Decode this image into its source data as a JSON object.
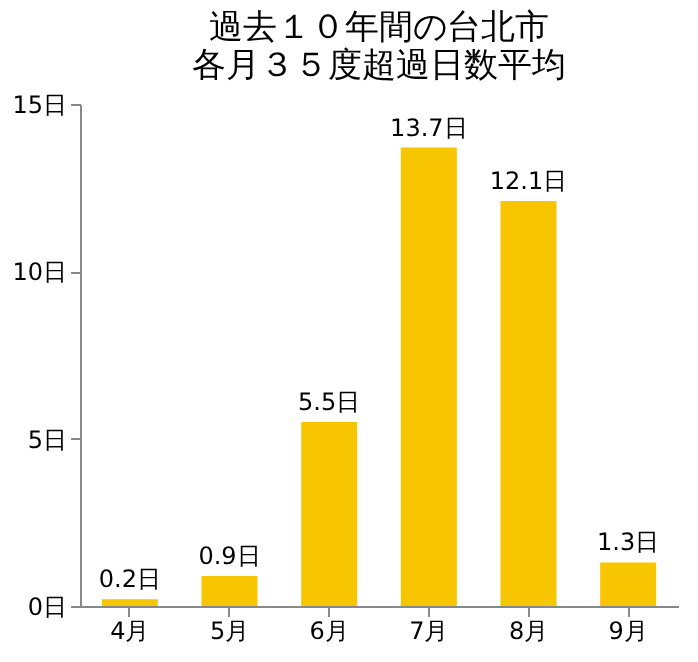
{
  "chart_data": {
    "type": "bar",
    "title": [
      "過去１０年間の台北市",
      "各月３５度超過日数平均"
    ],
    "categories": [
      "4月",
      "5月",
      "6月",
      "7月",
      "8月",
      "9月"
    ],
    "values": [
      0.2,
      0.9,
      5.5,
      13.7,
      12.1,
      1.3
    ],
    "value_labels": [
      "0.2日",
      "0.9日",
      "5.5日",
      "13.7日",
      "12.1日",
      "1.3日"
    ],
    "color": "#f7c600",
    "ylim": [
      0,
      15
    ],
    "yticks": [
      {
        "value": 0,
        "label": "0日"
      },
      {
        "value": 5,
        "label": "5日"
      },
      {
        "value": 10,
        "label": "10日"
      },
      {
        "value": 15,
        "label": "15日"
      }
    ],
    "grid": false
  }
}
